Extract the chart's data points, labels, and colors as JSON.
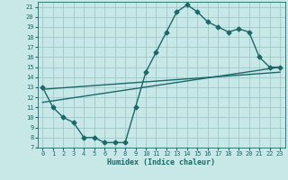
{
  "title": "",
  "xlabel": "Humidex (Indice chaleur)",
  "ylabel": "",
  "bg_color": "#c8e8e8",
  "grid_color": "#a0c8c8",
  "line_color": "#1a6868",
  "xlim": [
    -0.5,
    23.5
  ],
  "ylim": [
    7,
    21.5
  ],
  "xticks": [
    0,
    1,
    2,
    3,
    4,
    5,
    6,
    7,
    8,
    9,
    10,
    11,
    12,
    13,
    14,
    15,
    16,
    17,
    18,
    19,
    20,
    21,
    22,
    23
  ],
  "yticks": [
    7,
    8,
    9,
    10,
    11,
    12,
    13,
    14,
    15,
    16,
    17,
    18,
    19,
    20,
    21
  ],
  "line1_x": [
    0,
    1,
    2,
    3,
    4,
    5,
    6,
    7,
    8,
    9,
    10,
    11,
    12,
    13,
    14,
    15,
    16,
    17,
    18,
    19,
    20,
    21,
    22,
    23
  ],
  "line1_y": [
    13.0,
    11.0,
    10.0,
    9.5,
    8.0,
    8.0,
    7.5,
    7.5,
    7.5,
    11.0,
    14.5,
    16.5,
    18.5,
    20.5,
    21.2,
    20.5,
    19.5,
    19.0,
    18.5,
    18.8,
    18.5,
    16.0,
    15.0,
    15.0
  ],
  "line2_x": [
    0,
    23
  ],
  "line2_y": [
    11.5,
    15.0
  ],
  "line3_x": [
    0,
    23
  ],
  "line3_y": [
    12.8,
    14.5
  ],
  "marker_size": 2.5,
  "line_width": 1.0
}
